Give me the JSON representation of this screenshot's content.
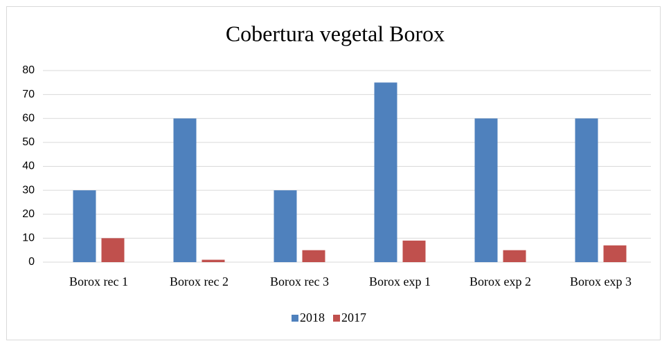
{
  "chart_data": {
    "type": "bar",
    "title": "Cobertura vegetal Borox",
    "categories": [
      "Borox rec 1",
      "Borox rec 2",
      "Borox rec 3",
      "Borox exp 1",
      "Borox exp  2",
      "Borox exp 3"
    ],
    "series": [
      {
        "name": "2018",
        "color": "#4f81bd",
        "values": [
          30,
          60,
          30,
          75,
          60,
          60
        ]
      },
      {
        "name": "2017",
        "color": "#c0504d",
        "values": [
          10,
          1,
          5,
          9,
          5,
          7
        ]
      }
    ],
    "ylim": [
      0,
      80
    ],
    "yticks": [
      0,
      10,
      20,
      30,
      40,
      50,
      60,
      70,
      80
    ],
    "grid": true,
    "legend": "bottom"
  }
}
